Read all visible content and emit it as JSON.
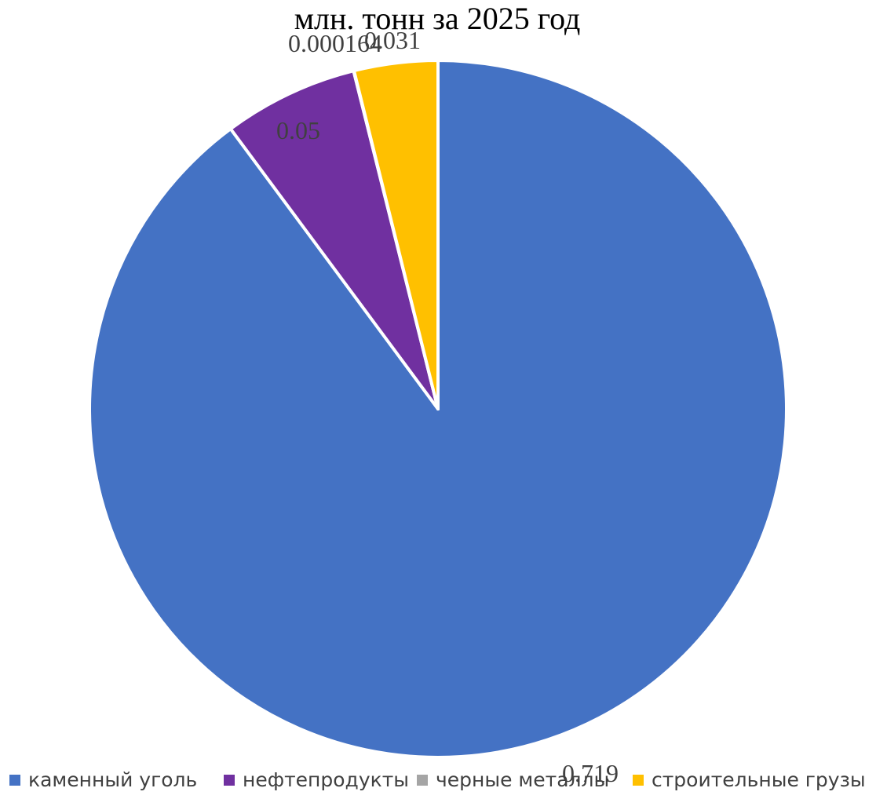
{
  "chart_data": {
    "type": "pie",
    "title": "млн. тонн за  2025 год",
    "legend_position": "bottom",
    "start_angle_deg": 0,
    "direction": "clockwise",
    "slices": [
      {
        "name": "каменный уголь",
        "value": 0.719,
        "label": "0.719",
        "color": "#4472C4"
      },
      {
        "name": "нефтепродукты",
        "value": 0.05,
        "label": "0.05",
        "color": "#7030A0"
      },
      {
        "name": "черные металлы",
        "value": 0.000164,
        "label": "0.000164",
        "color": "#A5A5A5"
      },
      {
        "name": "строительные грузы",
        "value": 0.031,
        "label": "0.031",
        "color": "#FFC000"
      }
    ]
  }
}
